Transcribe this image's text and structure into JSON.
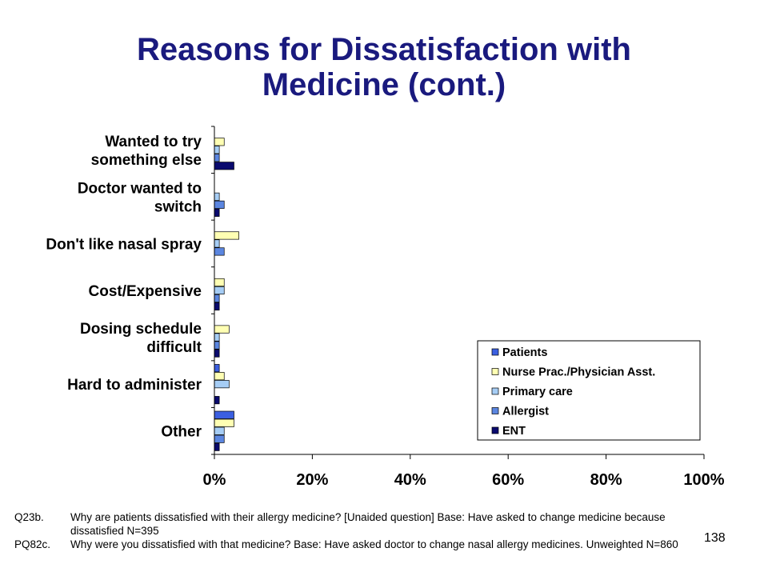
{
  "title_line1": "Reasons for Dissatisfaction with",
  "title_line2": "Medicine (cont.)",
  "chart_data": {
    "type": "bar",
    "orientation": "horizontal",
    "categories": [
      [
        "Wanted to try",
        "something else"
      ],
      [
        "Doctor wanted to",
        "switch"
      ],
      [
        "Don't like nasal spray"
      ],
      [
        "Cost/Expensive"
      ],
      [
        "Dosing schedule",
        "difficult"
      ],
      [
        "Hard to administer"
      ],
      [
        "Other"
      ]
    ],
    "series": [
      {
        "name": "Patients",
        "color": "#3b5fe0",
        "values": [
          0,
          0,
          0,
          0,
          0,
          1,
          4
        ]
      },
      {
        "name": "Nurse Prac./Physician Asst.",
        "color": "#ffffb3",
        "values": [
          2,
          0,
          5,
          2,
          3,
          2,
          4
        ]
      },
      {
        "name": "Primary care",
        "color": "#a6cdf5",
        "values": [
          1,
          1,
          1,
          2,
          1,
          3,
          2
        ]
      },
      {
        "name": "Allergist",
        "color": "#5b86e0",
        "values": [
          1,
          2,
          2,
          1,
          1,
          0,
          2
        ]
      },
      {
        "name": "ENT",
        "color": "#0a0a6e",
        "values": [
          4,
          1,
          0,
          1,
          1,
          1,
          1
        ]
      }
    ],
    "x_ticks": [
      "0%",
      "20%",
      "40%",
      "60%",
      "80%",
      "100%"
    ],
    "xlim": [
      0,
      100
    ],
    "legend_position": "bottom-right",
    "grid": false
  },
  "footnotes": [
    {
      "code": "Q23b.",
      "text": "Why are patients dissatisfied with their allergy medicine? [Unaided question] Base: Have asked to change medicine because dissatisfied   N=395"
    },
    {
      "code": "PQ82c.",
      "text": "Why were you dissatisfied with that medicine? Base: Have asked doctor to change nasal allergy medicines. Unweighted N=860"
    }
  ],
  "page_number": "138"
}
